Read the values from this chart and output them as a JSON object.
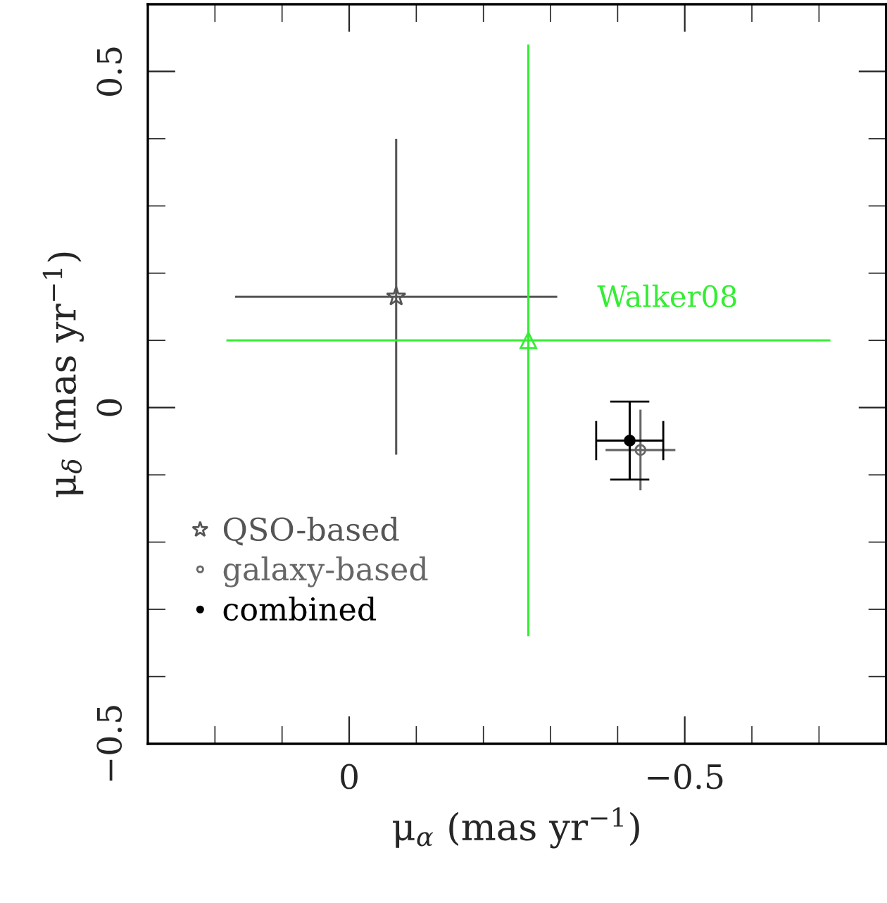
{
  "chart_data": {
    "type": "scatter",
    "xlabel": "μ$_{α}$ (mas yr$^{−1}$)",
    "ylabel": "μ$_{δ}$ (mas yr$^{−1}$)",
    "xlim": [
      0.3,
      -0.8
    ],
    "ylim": [
      -0.5,
      0.6
    ],
    "xticks": [
      {
        "value": 0.2,
        "label": null
      },
      {
        "value": 0.1,
        "label": null
      },
      0,
      {
        "value": -0.1,
        "label": null
      },
      {
        "value": -0.2,
        "label": null
      },
      {
        "value": -0.3,
        "label": null
      },
      {
        "value": -0.4,
        "label": null
      },
      {
        "value": -0.5,
        "label": "−0.5"
      },
      {
        "value": -0.6,
        "label": null
      },
      {
        "value": -0.7,
        "label": null
      }
    ],
    "yticks": [
      {
        "value": -0.5,
        "label": "−0.5"
      },
      {
        "value": -0.4,
        "label": null
      },
      {
        "value": -0.3,
        "label": null
      },
      {
        "value": -0.2,
        "label": null
      },
      {
        "value": -0.1,
        "label": null
      },
      0,
      {
        "value": 0.1,
        "label": null
      },
      {
        "value": 0.2,
        "label": null
      },
      {
        "value": 0.3,
        "label": null
      },
      {
        "value": 0.4,
        "label": null
      },
      0.5
    ],
    "legend": "bottom left",
    "grid": false,
    "series": [
      {
        "name": "QSO-based",
        "color": "#555555",
        "marker": "star",
        "x": [
          -0.07
        ],
        "values": [
          0.165
        ],
        "errors": [
          0.235
        ],
        "xerrors": [
          0.24
        ]
      },
      {
        "name": "galaxy-based",
        "color": "#666666",
        "marker": "circle",
        "x": [
          -0.434
        ],
        "values": [
          -0.063
        ],
        "errors": [
          0.06
        ],
        "xerrors": [
          0.052
        ]
      },
      {
        "name": "combined",
        "color": "#000000",
        "marker": "circle",
        "x": [
          -0.418
        ],
        "values": [
          -0.049
        ],
        "errors": [
          0.058
        ],
        "xerrors": [
          0.05
        ]
      },
      {
        "name": "Walker08",
        "color": "#33ee33",
        "marker": "triangle",
        "x": [
          -0.267
        ],
        "values": [
          0.1
        ],
        "errors": [
          0.44
        ],
        "xerrors": [
          0.45
        ]
      }
    ]
  }
}
